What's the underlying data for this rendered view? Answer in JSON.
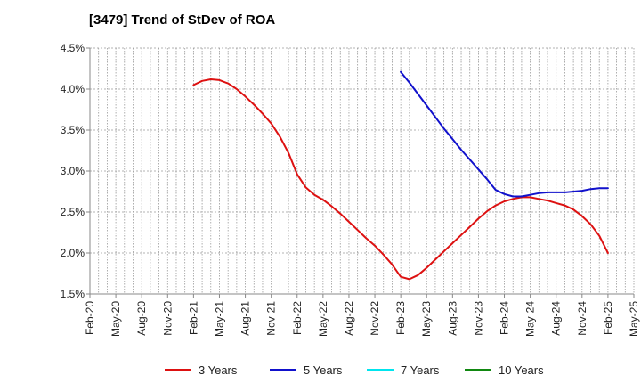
{
  "chart_data": {
    "type": "line",
    "title": "[3479]  Trend of StDev of ROA",
    "xlabel": "",
    "ylabel": "",
    "ylim": [
      1.5,
      4.5
    ],
    "y_ticks": [
      "1.5%",
      "2.0%",
      "2.5%",
      "3.0%",
      "3.5%",
      "4.0%",
      "4.5%"
    ],
    "y_tick_values": [
      1.5,
      2.0,
      2.5,
      3.0,
      3.5,
      4.0,
      4.5
    ],
    "x_ticks": [
      "Feb-20",
      "May-20",
      "Aug-20",
      "Nov-20",
      "Feb-21",
      "May-21",
      "Aug-21",
      "Nov-21",
      "Feb-22",
      "May-22",
      "Aug-22",
      "Nov-22",
      "Feb-23",
      "May-23",
      "Aug-23",
      "Nov-23",
      "Feb-24",
      "May-24",
      "Aug-24",
      "Nov-24",
      "Feb-25",
      "May-25"
    ],
    "grid": true,
    "legend_position": "bottom",
    "series": [
      {
        "name": "3 Years",
        "color": "#dd1111",
        "x": [
          "Feb-21",
          "Mar-21",
          "Apr-21",
          "May-21",
          "Jun-21",
          "Jul-21",
          "Aug-21",
          "Sep-21",
          "Oct-21",
          "Nov-21",
          "Dec-21",
          "Jan-22",
          "Feb-22",
          "Mar-22",
          "Apr-22",
          "May-22",
          "Jun-22",
          "Jul-22",
          "Aug-22",
          "Sep-22",
          "Oct-22",
          "Nov-22",
          "Dec-22",
          "Jan-23",
          "Feb-23",
          "Mar-23",
          "Apr-23",
          "May-23",
          "Jun-23",
          "Jul-23",
          "Aug-23",
          "Sep-23",
          "Oct-23",
          "Nov-23",
          "Dec-23",
          "Jan-24",
          "Feb-24",
          "Mar-24",
          "Apr-24",
          "May-24",
          "Jun-24",
          "Jul-24",
          "Aug-24",
          "Sep-24",
          "Oct-24",
          "Nov-24",
          "Dec-24",
          "Jan-25",
          "Feb-25"
        ],
        "values": [
          4.05,
          4.1,
          4.12,
          4.11,
          4.07,
          4.0,
          3.91,
          3.81,
          3.7,
          3.58,
          3.42,
          3.22,
          2.96,
          2.8,
          2.71,
          2.65,
          2.57,
          2.48,
          2.38,
          2.28,
          2.18,
          2.09,
          1.98,
          1.86,
          1.71,
          1.68,
          1.73,
          1.82,
          1.92,
          2.02,
          2.12,
          2.22,
          2.32,
          2.42,
          2.51,
          2.58,
          2.63,
          2.66,
          2.68,
          2.68,
          2.66,
          2.64,
          2.61,
          2.58,
          2.53,
          2.45,
          2.35,
          2.21,
          2.0
        ]
      },
      {
        "name": "5 Years",
        "color": "#1111cc",
        "x": [
          "Feb-23",
          "Mar-23",
          "Apr-23",
          "May-23",
          "Jun-23",
          "Jul-23",
          "Aug-23",
          "Sep-23",
          "Oct-23",
          "Nov-23",
          "Dec-23",
          "Jan-24",
          "Feb-24",
          "Mar-24",
          "Apr-24",
          "May-24",
          "Jun-24",
          "Jul-24",
          "Aug-24",
          "Sep-24",
          "Oct-24",
          "Nov-24",
          "Dec-24",
          "Jan-25",
          "Feb-25"
        ],
        "values": [
          4.21,
          4.08,
          3.94,
          3.8,
          3.66,
          3.52,
          3.39,
          3.26,
          3.14,
          3.02,
          2.9,
          2.77,
          2.72,
          2.69,
          2.69,
          2.71,
          2.73,
          2.74,
          2.74,
          2.74,
          2.75,
          2.76,
          2.78,
          2.79,
          2.79
        ]
      },
      {
        "name": "7 Years",
        "color": "#00e5ee",
        "x": [],
        "values": []
      },
      {
        "name": "10 Years",
        "color": "#118811",
        "x": [],
        "values": []
      }
    ]
  }
}
